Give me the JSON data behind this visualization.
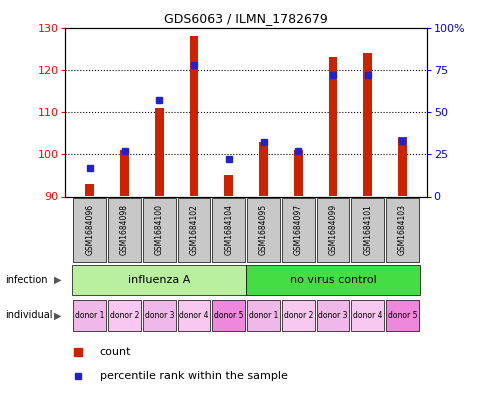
{
  "title": "GDS6063 / ILMN_1782679",
  "samples": [
    "GSM1684096",
    "GSM1684098",
    "GSM1684100",
    "GSM1684102",
    "GSM1684104",
    "GSM1684095",
    "GSM1684097",
    "GSM1684099",
    "GSM1684101",
    "GSM1684103"
  ],
  "counts": [
    93,
    101,
    111,
    128,
    95,
    103,
    101,
    123,
    124,
    104
  ],
  "percentiles": [
    17,
    27,
    57,
    78,
    22,
    32,
    27,
    72,
    72,
    33
  ],
  "ylim_left": [
    90,
    130
  ],
  "ylim_right": [
    0,
    100
  ],
  "yticks_left": [
    90,
    100,
    110,
    120,
    130
  ],
  "yticks_right": [
    0,
    25,
    50,
    75,
    100
  ],
  "ytick_labels_right": [
    "0",
    "25",
    "50",
    "75",
    "100%"
  ],
  "infection_groups": [
    {
      "label": "influenza A",
      "start": 0,
      "end": 5,
      "color": "#b8f0a0"
    },
    {
      "label": "no virus control",
      "start": 5,
      "end": 10,
      "color": "#44dd44"
    }
  ],
  "donors": [
    "donor 1",
    "donor 2",
    "donor 3",
    "donor 4",
    "donor 5",
    "donor 1",
    "donor 2",
    "donor 3",
    "donor 4",
    "donor 5"
  ],
  "donor_pink_colors": [
    "#f0b8e8",
    "#f8c8f0",
    "#f0b8e8",
    "#f8c8f0",
    "#ee88dd",
    "#f0b8e8",
    "#f8c8f0",
    "#f0b8e8",
    "#f8c8f0",
    "#ee88dd"
  ],
  "bar_color": "#cc2200",
  "dot_color": "#2222cc",
  "bar_bottom": 90,
  "sample_box_color": "#c8c8c8",
  "bar_width": 0.25
}
